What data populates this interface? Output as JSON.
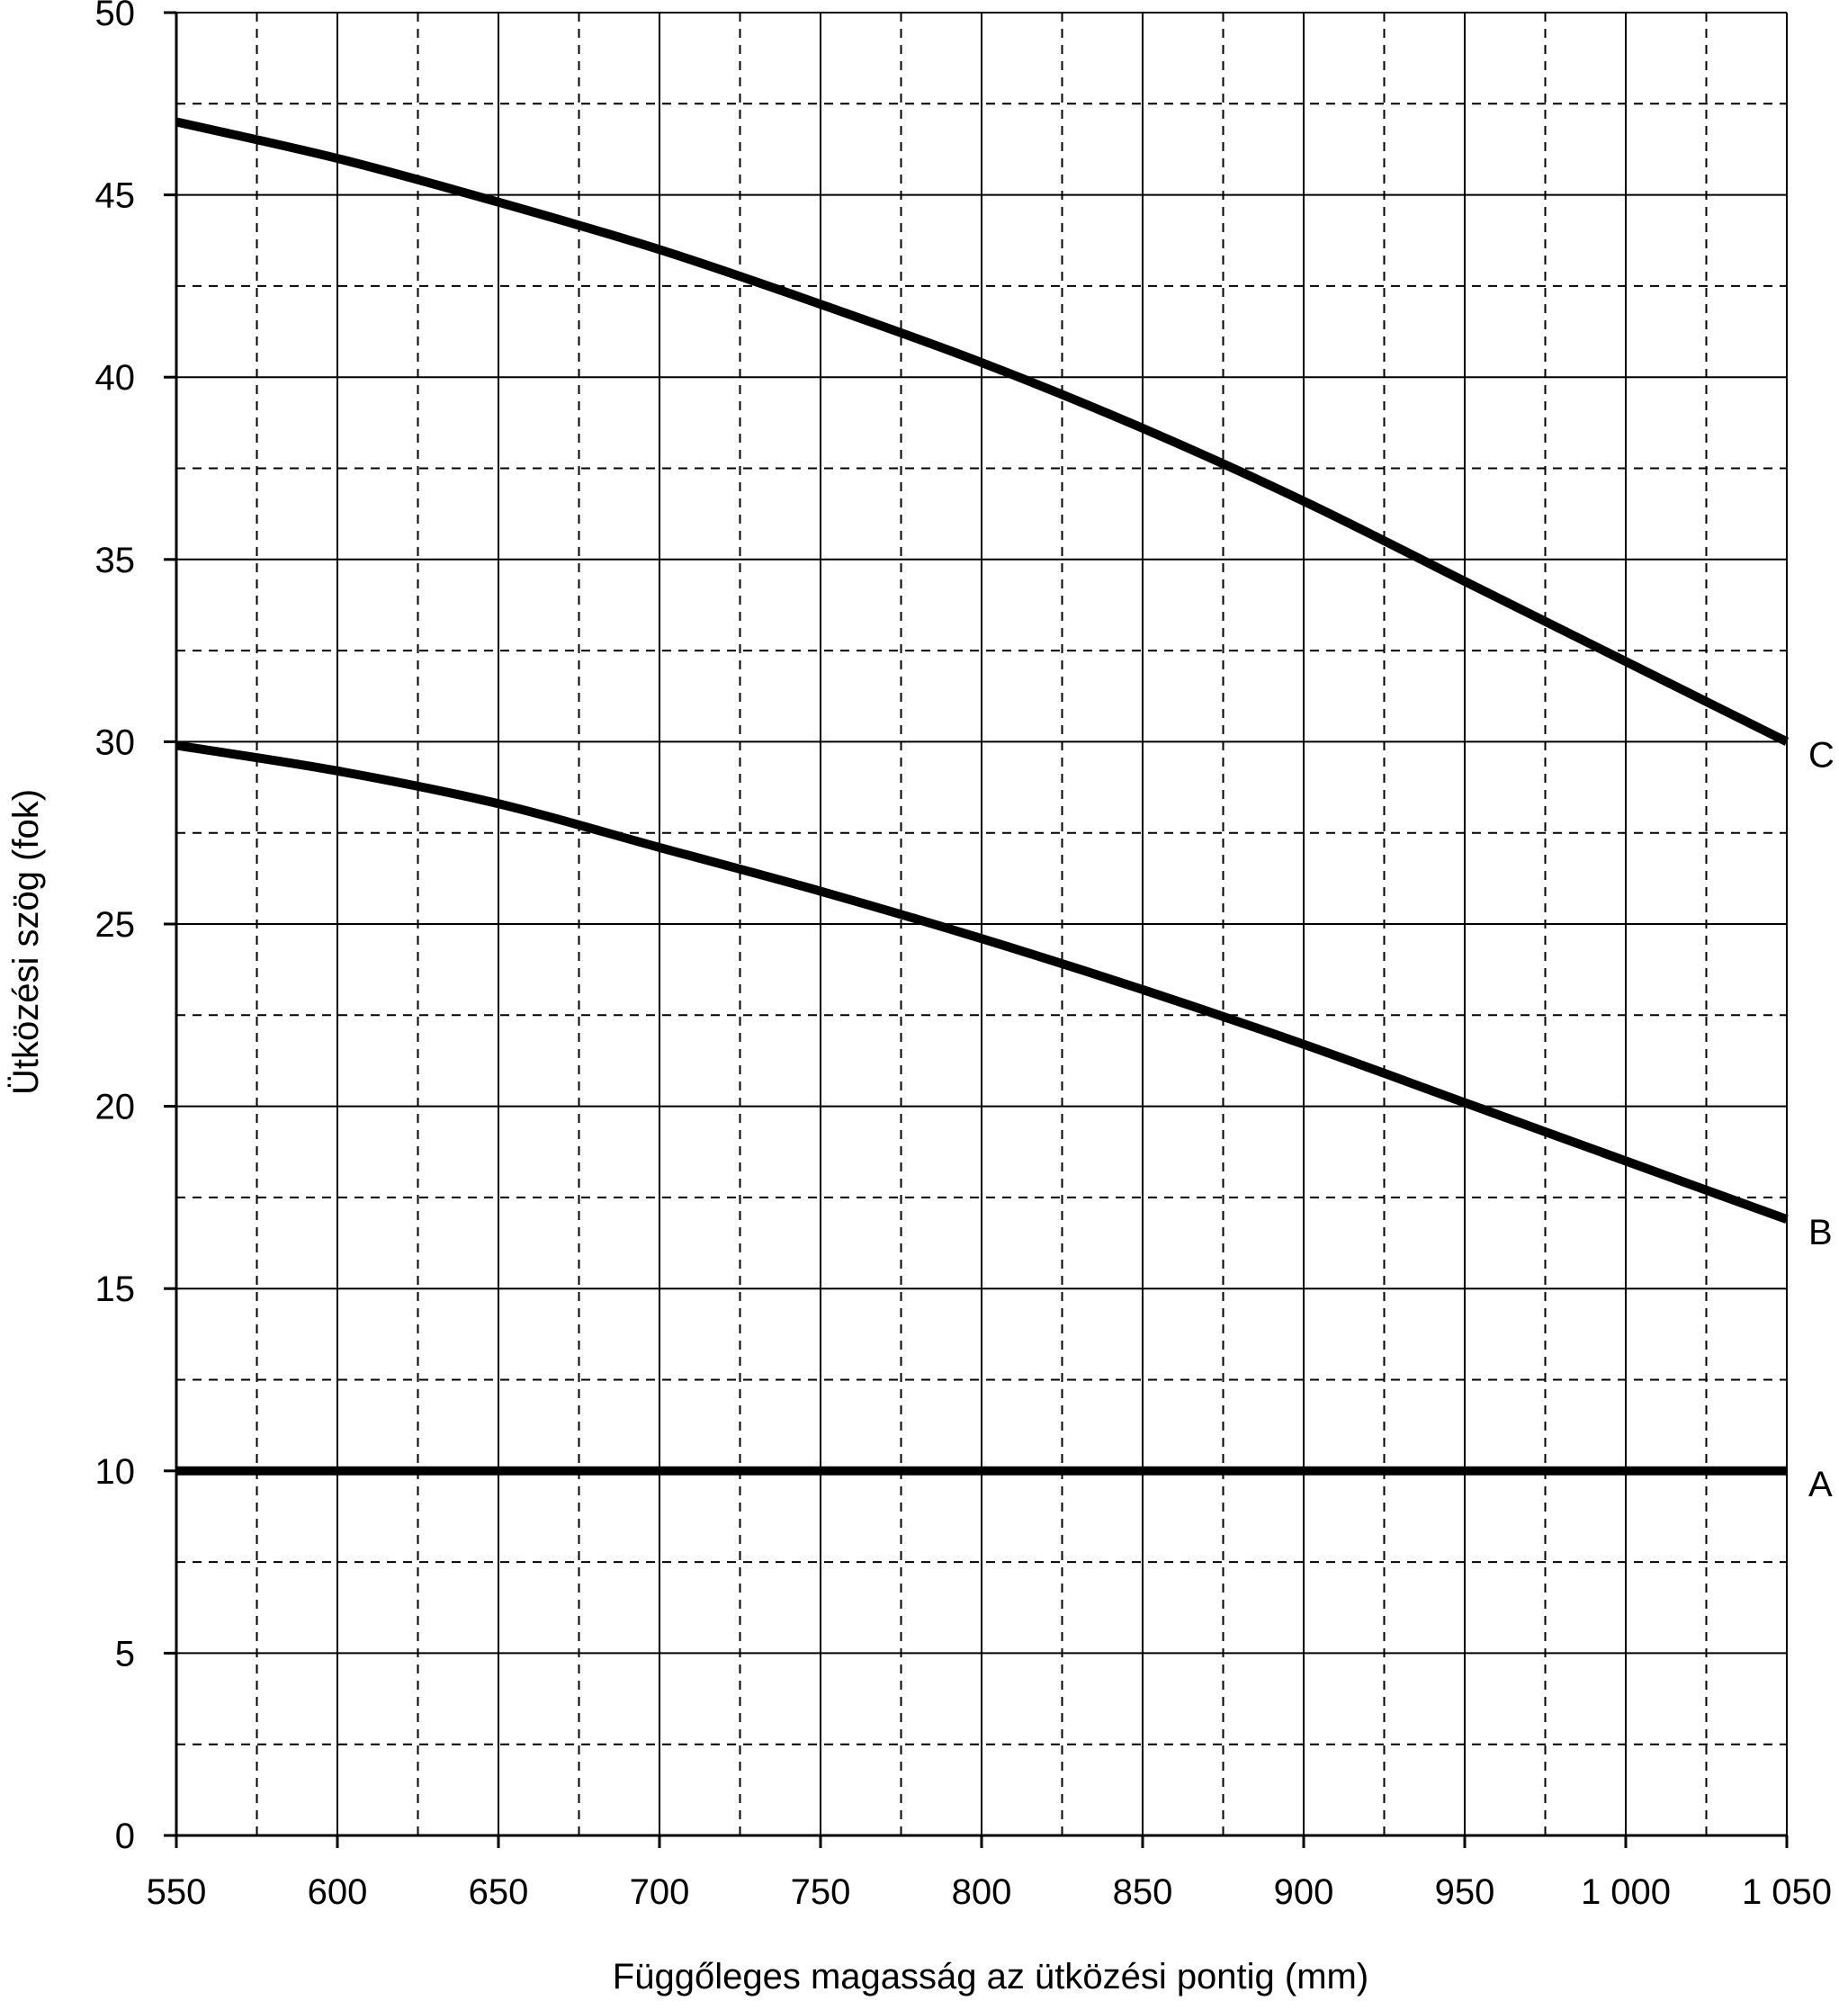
{
  "chart_data": {
    "type": "line",
    "title": "",
    "xlabel": "Függőleges magasság az ütközési pontig (mm)",
    "ylabel": "Ütközési szög (fok)",
    "xlim": [
      550,
      1050
    ],
    "ylim": [
      0,
      50
    ],
    "grid": true,
    "x_ticks": [
      550,
      600,
      650,
      700,
      750,
      800,
      850,
      900,
      950,
      1000,
      1050
    ],
    "x_tick_labels": [
      "550",
      "600",
      "650",
      "700",
      "750",
      "800",
      "850",
      "900",
      "950",
      "1 000",
      "1 050"
    ],
    "y_ticks": [
      0,
      5,
      10,
      15,
      20,
      25,
      30,
      35,
      40,
      45,
      50
    ],
    "y_tick_labels": [
      "0",
      "5",
      "10",
      "15",
      "20",
      "25",
      "30",
      "35",
      "40",
      "45",
      "50"
    ],
    "line_color": "#000000",
    "series": [
      {
        "name": "A",
        "x": [
          550,
          600,
          650,
          700,
          750,
          800,
          850,
          900,
          950,
          1000,
          1050
        ],
        "values": [
          10,
          10,
          10,
          10,
          10,
          10,
          10,
          10,
          10,
          10,
          10
        ]
      },
      {
        "name": "B",
        "x": [
          550,
          600,
          650,
          700,
          750,
          800,
          850,
          900,
          950,
          1000,
          1050
        ],
        "values": [
          29.9,
          29.2,
          28.3,
          27.1,
          25.9,
          24.6,
          23.2,
          21.7,
          20.1,
          18.5,
          16.9
        ]
      },
      {
        "name": "C",
        "x": [
          550,
          600,
          650,
          700,
          750,
          800,
          850,
          900,
          950,
          1000,
          1050
        ],
        "values": [
          47,
          46,
          44.8,
          43.5,
          42,
          40.4,
          38.6,
          36.6,
          34.4,
          32.2,
          30
        ]
      }
    ]
  }
}
